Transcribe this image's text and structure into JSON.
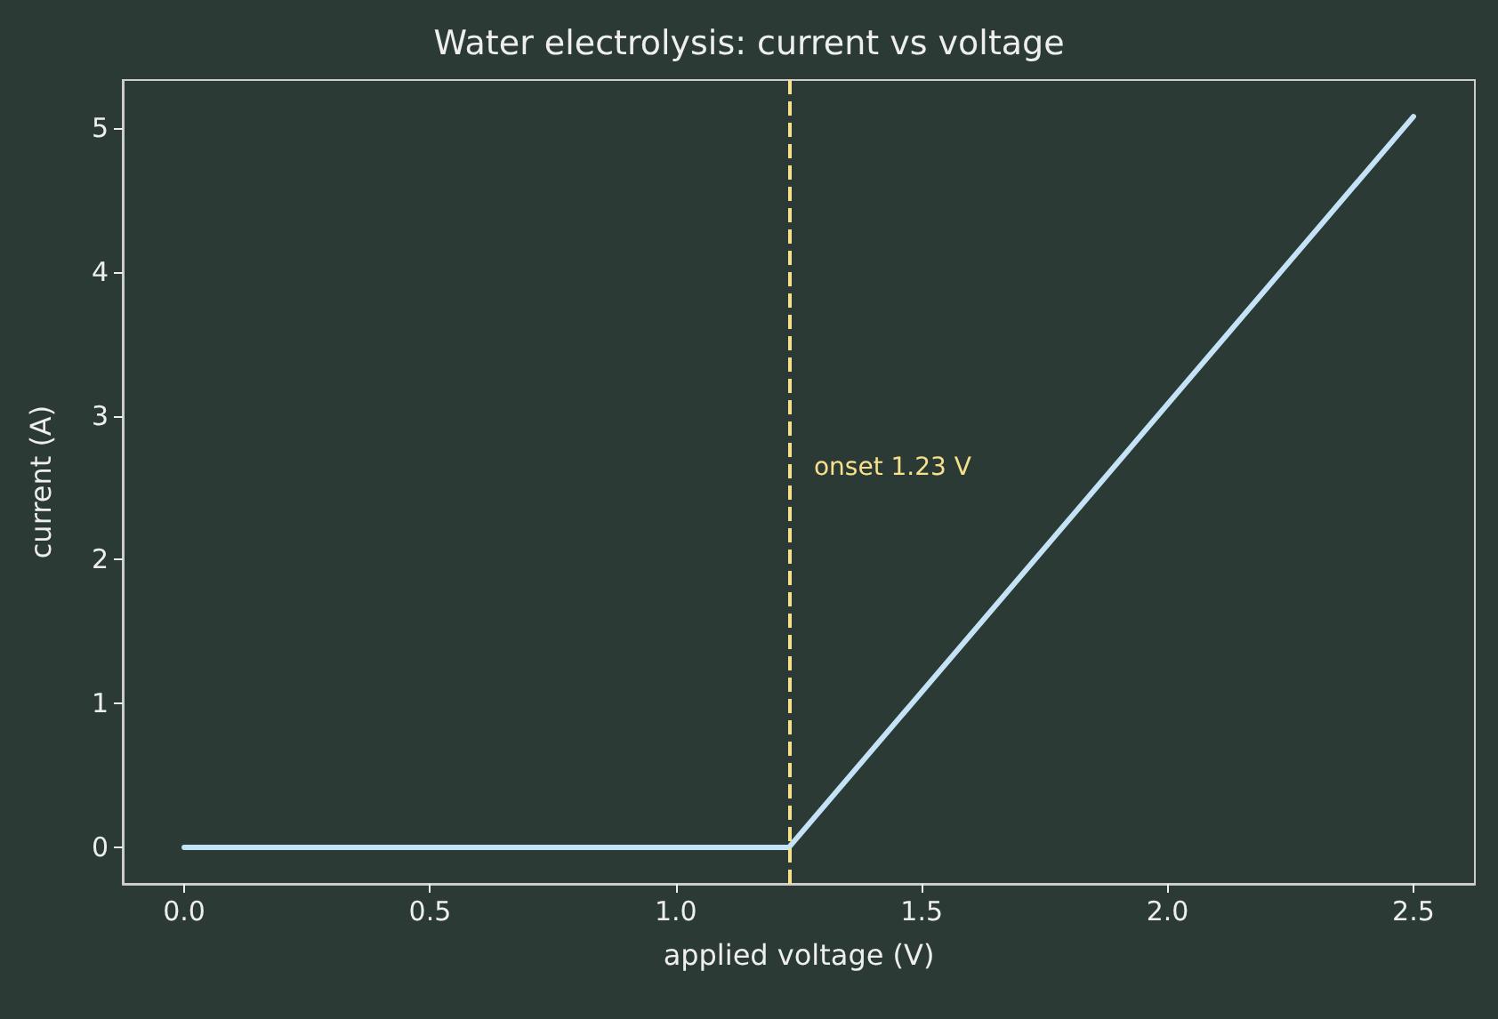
{
  "chart_data": {
    "type": "line",
    "title": "Water electrolysis: current vs voltage",
    "xlabel": "applied voltage (V)",
    "ylabel": "current (A)",
    "x": [
      0,
      1.23,
      2.5
    ],
    "series": [
      {
        "color": "#c5e3f6",
        "values": [
          0,
          0,
          5.08
        ]
      }
    ],
    "xlim": [
      -0.125,
      2.625
    ],
    "ylim": [
      -0.254,
      5.334
    ],
    "xticks": [
      {
        "value": 0,
        "label": "0.0"
      },
      {
        "value": 0.5,
        "label": "0.5"
      },
      {
        "value": 1,
        "label": "1.0"
      },
      {
        "value": 1.5,
        "label": "1.5"
      },
      {
        "value": 2,
        "label": "2.0"
      },
      {
        "value": 2.5,
        "label": "2.5"
      }
    ],
    "yticks": [
      0,
      1,
      2,
      3,
      4,
      5
    ],
    "ref_lines": [
      {
        "axis": "x",
        "value": 1.23,
        "label": "onset 1.23 V",
        "color": "#f6e08c",
        "line_style": "dashed"
      }
    ],
    "grid": false,
    "marker": "none",
    "line_style": "solid"
  }
}
